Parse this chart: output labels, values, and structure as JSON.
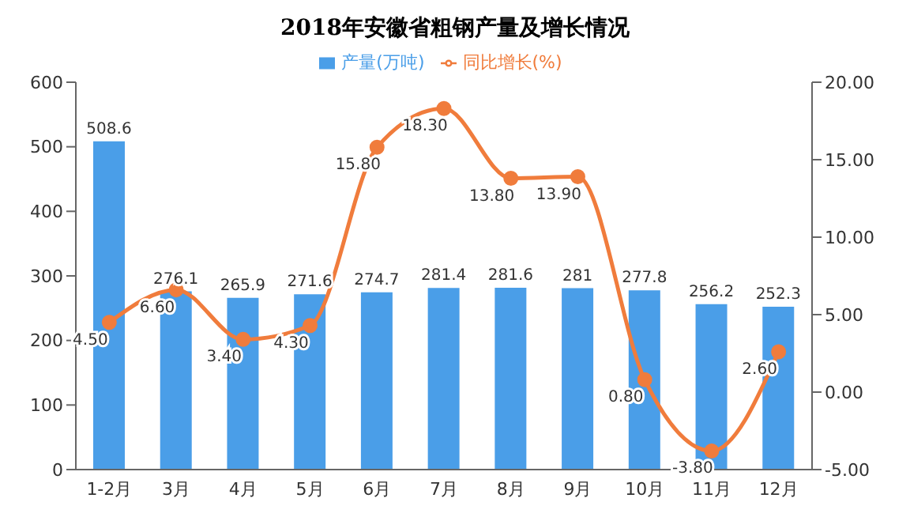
{
  "chart_data": {
    "type": "bar",
    "title": "2018年安徽省粗钢产量及增长情况",
    "categories": [
      "1-2月",
      "3月",
      "4月",
      "5月",
      "6月",
      "7月",
      "8月",
      "9月",
      "10月",
      "11月",
      "12月"
    ],
    "series": [
      {
        "name": "产量(万吨)",
        "color": "#4a9ee8",
        "values": [
          508.6,
          276.1,
          265.9,
          271.6,
          274.7,
          281.4,
          281.6,
          281,
          277.8,
          256.2,
          252.3
        ]
      },
      {
        "name": "同比增长(%)",
        "type": "line",
        "axis": "y2",
        "color": "#f07c3c",
        "values": [
          4.5,
          6.6,
          3.4,
          4.3,
          15.8,
          18.3,
          13.8,
          13.9,
          0.8,
          -3.8,
          2.6
        ],
        "value_labels": [
          "4.50",
          "6.60",
          "3.40",
          "4.30",
          "15.80",
          "18.30",
          "13.80",
          "13.90",
          "0.80",
          "-3.80",
          "2.60"
        ]
      }
    ],
    "ylim": [
      0,
      600
    ],
    "yticks": [
      0,
      100,
      200,
      300,
      400,
      500,
      600
    ],
    "y2lim": [
      -5,
      20
    ],
    "y2ticks": [
      {
        "value": -5,
        "label": "-5.00"
      },
      {
        "value": 0,
        "label": "0.00"
      },
      {
        "value": 5,
        "label": "5.00"
      },
      {
        "value": 10,
        "label": "10.00"
      },
      {
        "value": 15,
        "label": "15.00"
      },
      {
        "value": 20,
        "label": "20.00"
      }
    ],
    "data_labels": true,
    "legend": "top",
    "grid": false,
    "marker": "circle",
    "line_style": "solid"
  }
}
